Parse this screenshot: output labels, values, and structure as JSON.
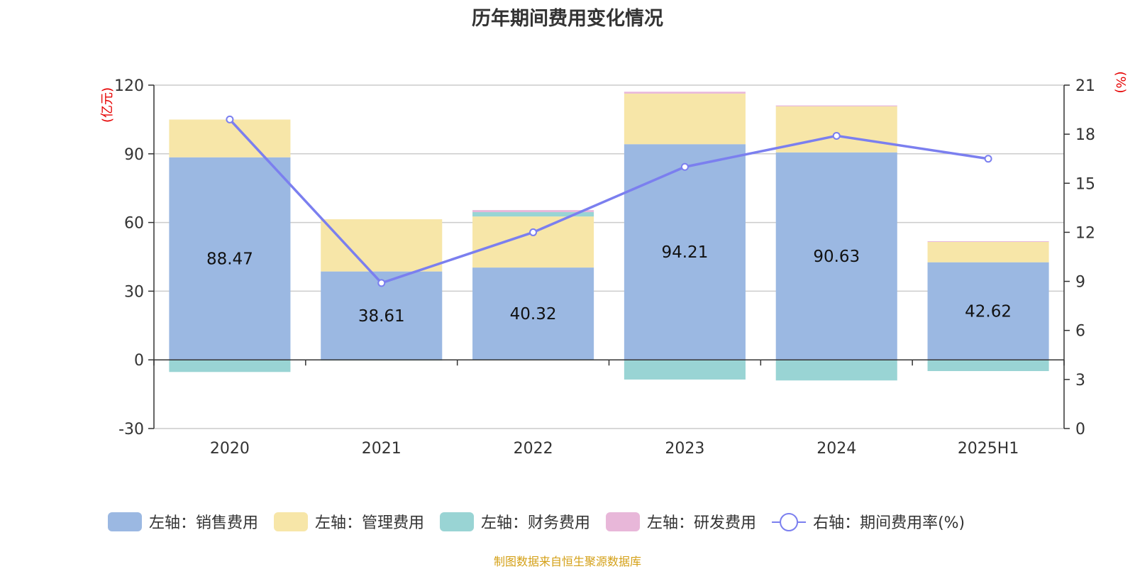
{
  "chart_data": {
    "type": "bar",
    "title": "历年期间费用变化情况",
    "categories": [
      "2020",
      "2021",
      "2022",
      "2023",
      "2024",
      "2025H1"
    ],
    "left_axis": {
      "unit_label": "(亿元)",
      "range": [
        -30,
        120
      ],
      "ticks": [
        "-30",
        "0",
        "30",
        "60",
        "90",
        "120"
      ]
    },
    "right_axis": {
      "unit_label": "(%)",
      "range": [
        0,
        21
      ],
      "ticks": [
        "0",
        "3",
        "6",
        "9",
        "12",
        "15",
        "18",
        "21"
      ]
    },
    "series": [
      {
        "name": "左轴：销售费用",
        "type": "bar",
        "axis": "left",
        "stack": "cost",
        "color": "#9bb8e2",
        "values": [
          88.47,
          38.61,
          40.32,
          94.21,
          90.63,
          42.62
        ],
        "labels": [
          "88.47",
          "38.61",
          "40.32",
          "94.21",
          "90.63",
          "42.62"
        ]
      },
      {
        "name": "左轴：管理费用",
        "type": "bar",
        "axis": "left",
        "stack": "cost",
        "color": "#f7e6a8",
        "values": [
          16.5,
          22.8,
          22.3,
          22.1,
          20.1,
          8.9
        ]
      },
      {
        "name": "左轴：财务费用",
        "type": "bar",
        "axis": "left",
        "stack": "cost",
        "color": "#99d4d4",
        "values": [
          -5.3,
          -0.3,
          1.9,
          -8.6,
          -9.0,
          -4.9
        ]
      },
      {
        "name": "左轴：研发费用",
        "type": "bar",
        "axis": "left",
        "stack": "cost",
        "color": "#e8b7d9",
        "values": [
          0,
          0,
          0.9,
          0.8,
          0.4,
          0.3
        ]
      },
      {
        "name": "右轴：期间费用率(%)",
        "type": "line",
        "axis": "right",
        "color": "#7b7fef",
        "values": [
          18.9,
          8.9,
          12.0,
          16.0,
          17.9,
          16.5
        ]
      }
    ],
    "grid": true,
    "legend_position": "bottom"
  },
  "source_note": "制图数据来自恒生聚源数据库"
}
